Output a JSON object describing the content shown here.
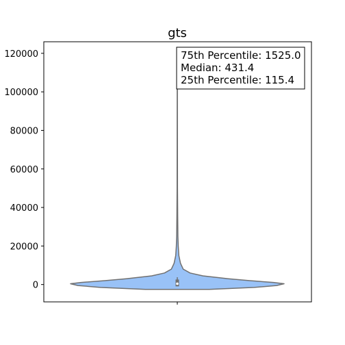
{
  "chart_data": {
    "type": "violin",
    "title": "gts",
    "xlabel": "",
    "ylabel": "",
    "y_ticks": [
      0,
      20000,
      40000,
      60000,
      80000,
      100000,
      120000
    ],
    "y_tick_labels": [
      "0",
      "20000",
      "40000",
      "60000",
      "80000",
      "100000",
      "120000"
    ],
    "ylim": [
      -9000,
      126000
    ],
    "grid": false,
    "colors": {
      "violin_fill": "#99c2f7",
      "violin_edge": "#707070",
      "box": "#707070"
    },
    "violin_profile": [
      {
        "y": -2500,
        "half_width": 0.3
      },
      {
        "y": -1500,
        "half_width": 0.72
      },
      {
        "y": -500,
        "half_width": 0.93
      },
      {
        "y": 400,
        "half_width": 1.0
      },
      {
        "y": 1100,
        "half_width": 0.9
      },
      {
        "y": 2000,
        "half_width": 0.68
      },
      {
        "y": 3000,
        "half_width": 0.48
      },
      {
        "y": 4500,
        "half_width": 0.24
      },
      {
        "y": 6000,
        "half_width": 0.12
      },
      {
        "y": 8000,
        "half_width": 0.055
      },
      {
        "y": 11000,
        "half_width": 0.03
      },
      {
        "y": 15000,
        "half_width": 0.015
      },
      {
        "y": 20000,
        "half_width": 0.009
      },
      {
        "y": 25000,
        "half_width": 0.006
      },
      {
        "y": 35000,
        "half_width": 0.004
      },
      {
        "y": 50000,
        "half_width": 0.002
      },
      {
        "y": 80000,
        "half_width": 0.001
      },
      {
        "y": 118000,
        "half_width": 0.0005
      }
    ],
    "box": {
      "q1": 115.4,
      "median": 431.4,
      "q3": 1525.0,
      "whisker_low": -800,
      "whisker_high": 3800
    },
    "annotation": {
      "lines": [
        "75th Percentile: 1525.0",
        "Median: 431.4",
        "25th Percentile: 115.4"
      ],
      "placement": "top-right"
    }
  }
}
